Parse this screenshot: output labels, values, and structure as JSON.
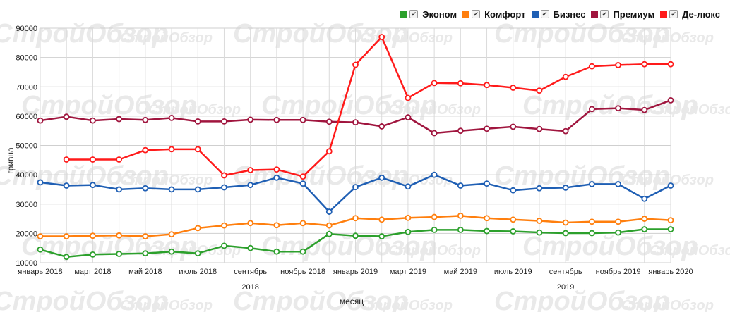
{
  "legend": {
    "items": [
      {
        "label": "Эконом",
        "color": "#2ca02c"
      },
      {
        "label": "Комфорт",
        "color": "#ff7f0e"
      },
      {
        "label": "Бизнес",
        "color": "#1f5fb4"
      },
      {
        "label": "Премиум",
        "color": "#a0153e"
      },
      {
        "label": "Де-люкс",
        "color": "#ff1a1a"
      }
    ]
  },
  "watermark": "СтройОбзор",
  "chart_data": {
    "type": "line",
    "xlabel": "месяц",
    "ylabel": "гривна",
    "ylim": [
      10000,
      90000
    ],
    "yticks": [
      10000,
      20000,
      30000,
      40000,
      50000,
      60000,
      70000,
      80000,
      90000
    ],
    "grid": true,
    "legend_position": "top-right",
    "x": [
      "январь 2018",
      "февраль 2018",
      "март 2018",
      "апрель 2018",
      "май 2018",
      "июнь 2018",
      "июль 2018",
      "август 2018",
      "сентябрь 2018",
      "октябрь 2018",
      "ноябрь 2018",
      "декабрь 2018",
      "январь 2019",
      "февраль 2019",
      "март 2019",
      "апрель 2019",
      "май 2019",
      "июнь 2019",
      "июль 2019",
      "август 2019",
      "сентябрь 2019",
      "октябрь 2019",
      "ноябрь 2019",
      "декабрь 2019",
      "январь 2020"
    ],
    "x_tick_labels": [
      {
        "index": 0,
        "label": "январь 2018"
      },
      {
        "index": 2,
        "label": "март 2018"
      },
      {
        "index": 4,
        "label": "май 2018"
      },
      {
        "index": 6,
        "label": "июль 2018"
      },
      {
        "index": 8,
        "label": "сентябрь"
      },
      {
        "index": 10,
        "label": "ноябрь 2018"
      },
      {
        "index": 12,
        "label": "январь 2019"
      },
      {
        "index": 14,
        "label": "март 2019"
      },
      {
        "index": 16,
        "label": "май 2019"
      },
      {
        "index": 18,
        "label": "июль 2019"
      },
      {
        "index": 20,
        "label": "сентябрь"
      },
      {
        "index": 22,
        "label": "ноябрь 2019"
      },
      {
        "index": 24,
        "label": "январь 2020"
      }
    ],
    "x_year_labels": [
      {
        "index": 8,
        "label": "2018"
      },
      {
        "index": 20,
        "label": "2019"
      }
    ],
    "series": [
      {
        "name": "Эконом",
        "color": "#2ca02c",
        "values": [
          14500,
          12000,
          12800,
          13000,
          13200,
          13800,
          13200,
          15800,
          15000,
          13800,
          13800,
          19800,
          19200,
          19000,
          20500,
          21200,
          21200,
          20800,
          20700,
          20300,
          20100,
          20100,
          20300,
          21400,
          21400
        ]
      },
      {
        "name": "Комфорт",
        "color": "#ff7f0e",
        "values": [
          19000,
          19000,
          19200,
          19300,
          19000,
          19700,
          21800,
          22700,
          23500,
          22800,
          23500,
          22700,
          25200,
          24700,
          25300,
          25600,
          26000,
          25200,
          24700,
          24300,
          23700,
          24000,
          24000,
          25000,
          24500
        ]
      },
      {
        "name": "Бизнес",
        "color": "#1f5fb4",
        "values": [
          37400,
          36300,
          36500,
          35000,
          35400,
          35000,
          35000,
          35700,
          36500,
          39000,
          37000,
          27400,
          35800,
          39000,
          36000,
          40000,
          36300,
          37000,
          34700,
          35400,
          35600,
          36800,
          36800,
          31800,
          36300
        ]
      },
      {
        "name": "Премиум",
        "color": "#a0153e",
        "values": [
          58500,
          59800,
          58500,
          59000,
          58700,
          59400,
          58200,
          58200,
          58800,
          58700,
          58700,
          58100,
          57900,
          56500,
          59600,
          54200,
          55000,
          55700,
          56400,
          55600,
          54900,
          62400,
          62700,
          62100,
          65400
        ]
      },
      {
        "name": "Де-люкс",
        "color": "#ff1a1a",
        "values": [
          null,
          45200,
          45200,
          45200,
          48400,
          48700,
          48700,
          39800,
          41600,
          41800,
          39400,
          48000,
          77500,
          87000,
          66200,
          71300,
          71200,
          70600,
          69700,
          68700,
          73400,
          77000,
          77400,
          77700,
          77700
        ]
      }
    ]
  }
}
